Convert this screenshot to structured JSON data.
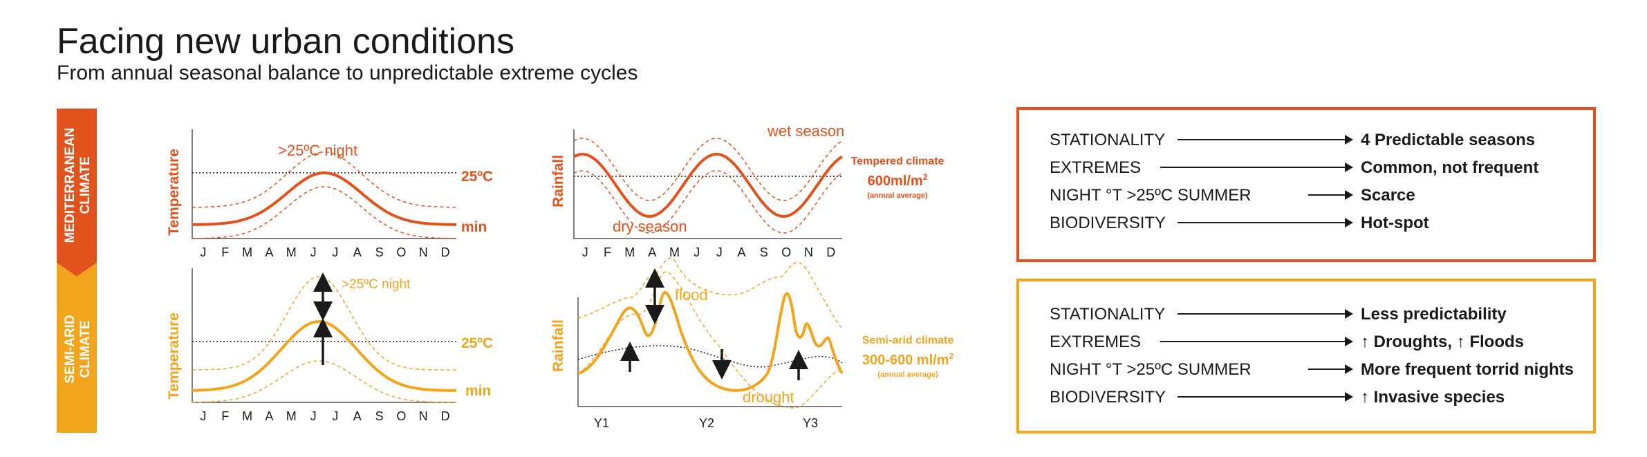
{
  "title": "Facing new urban conditions",
  "subtitle": "From annual seasonal balance to unpredictable extreme cycles",
  "colors": {
    "mediterranean": "#e2521c",
    "semiarid": "#f2a51c",
    "text": "#1a1a1a"
  },
  "climates": {
    "mediterranean": {
      "line1": "MEDITERRANEAN",
      "line2": "CLIMATE"
    },
    "semiarid": {
      "line1": "SEMI-ARID",
      "line2": "CLIMATE"
    }
  },
  "months": [
    "J",
    "F",
    "M",
    "A",
    "M",
    "J",
    "J",
    "A",
    "S",
    "O",
    "N",
    "D"
  ],
  "years": [
    "Y1",
    "Y2",
    "Y3"
  ],
  "charts": {
    "med_temp": {
      "ylabel": "Temperature",
      "threshold_label": "25ºC",
      "min_label": "min",
      "annotation": ">25ºC night"
    },
    "med_rain": {
      "ylabel": "Rainfall",
      "wet_label": "wet season",
      "dry_label": "dry season",
      "climate_label": "Tempered climate",
      "amount_main": "600ml/m",
      "amount_sup": "2",
      "amount_note": "(annual average)"
    },
    "semi_temp": {
      "ylabel": "Temperature",
      "threshold_label": "25ºC",
      "min_label": "min",
      "annotation": ">25ºC night"
    },
    "semi_rain": {
      "ylabel": "Rainfall",
      "flood_label": "flood",
      "drought_label": "drought",
      "climate_label": "Semi-arid climate",
      "amount_main": "300-600 ml/m",
      "amount_sup": "2",
      "amount_note": "(annual average)"
    }
  },
  "mediterranean_box": {
    "rows": [
      {
        "label": "STATIONALITY",
        "value": "4 Predictable seasons"
      },
      {
        "label": "EXTREMES",
        "value": "Common, not frequent"
      },
      {
        "label": "NIGHT °T >25ºC SUMMER",
        "value": "Scarce"
      },
      {
        "label": "BIODIVERSITY",
        "value": "Hot-spot"
      }
    ]
  },
  "semiarid_box": {
    "rows": [
      {
        "label": "STATIONALITY",
        "value": "Less predictability"
      },
      {
        "label": "EXTREMES",
        "value": "↑ Droughts, ↑ Floods"
      },
      {
        "label": "NIGHT °T >25ºC SUMMER",
        "value": "More frequent torrid nights"
      },
      {
        "label": "BIODIVERSITY",
        "value": "↑ Invasive species"
      }
    ]
  }
}
